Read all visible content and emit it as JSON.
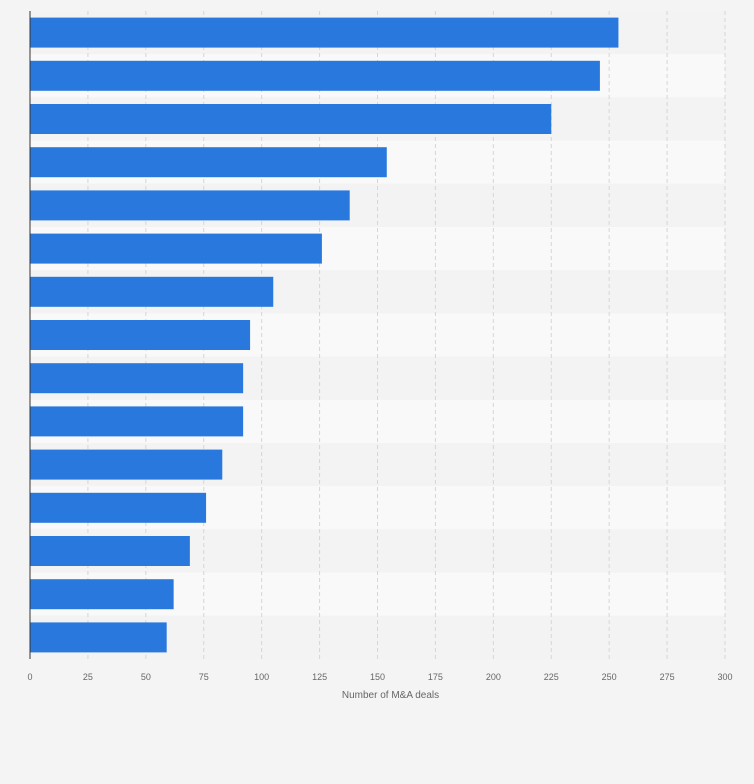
{
  "chart_data": {
    "type": "bar",
    "orientation": "horizontal",
    "categories": [
      "",
      "",
      "",
      "",
      "",
      "",
      "",
      "",
      "",
      "",
      "",
      "",
      "",
      "",
      ""
    ],
    "values": [
      254,
      246,
      225,
      154,
      138,
      126,
      105,
      95,
      92,
      92,
      83,
      76,
      69,
      62,
      59
    ],
    "xlabel": "Number of M&A deals",
    "ylabel": "",
    "xlim": [
      0,
      300
    ],
    "xticks": [
      "0",
      "25",
      "50",
      "75",
      "100",
      "125",
      "150",
      "175",
      "200",
      "225",
      "250",
      "275",
      "300"
    ],
    "grid": true,
    "legend": "none",
    "colors": {
      "bar": "#2878dd",
      "band_light": "#f9f9f9",
      "band_dark": "#f3f3f3",
      "grid": "#d6d6d6",
      "axis": "#333333",
      "tick_text": "#666666",
      "background": "#f4f4f4"
    }
  }
}
